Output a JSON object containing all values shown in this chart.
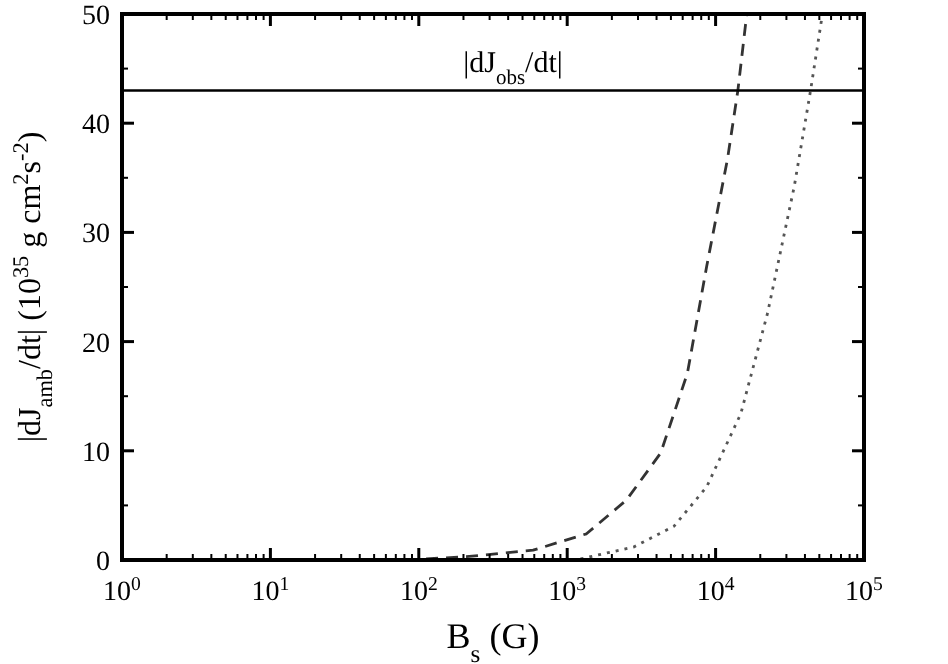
{
  "chart_data": {
    "type": "line",
    "xlabel": "B$_{s}$ (G)",
    "ylabel": "|dJ$_{amb}$/dt|  (10$^{35}$ g cm$^{2}$s$^{-2}$)",
    "log": "x",
    "xlim": [
      1,
      100000
    ],
    "ylim": [
      0,
      50
    ],
    "xticks": [
      {
        "value": 1,
        "label": "10$^{0}$"
      },
      {
        "value": 10,
        "label": "10$^{1}$"
      },
      {
        "value": 100,
        "label": "10$^{2}$"
      },
      {
        "value": 1000,
        "label": "10$^{3}$"
      },
      {
        "value": 10000,
        "label": "10$^{4}$"
      },
      {
        "value": 100000,
        "label": "10$^{5}$"
      }
    ],
    "yticks": [
      0,
      10,
      20,
      30,
      40,
      50
    ],
    "grid": false,
    "marker": "none",
    "series": [
      {
        "color": "#333333",
        "line_style": "dashed",
        "x": [
          112,
          209,
          589,
          1349,
          2512,
          4266,
          6457,
          8710,
          12020,
          14130,
          16220
        ],
        "values": [
          0.1,
          0.3,
          0.9,
          2.4,
          5.5,
          9.8,
          17.1,
          26.9,
          36.7,
          43,
          50
        ]
      },
      {
        "color": "#555555",
        "line_style": "dotted",
        "x": [
          1230,
          2818,
          5248,
          8710,
          14790,
          22390,
          33880,
          43650,
          52480
        ],
        "values": [
          0.1,
          1.2,
          3.1,
          6.7,
          13.4,
          22.6,
          34.2,
          43,
          50
        ]
      }
    ],
    "ref_lines": [
      {
        "axis": "y",
        "value": 43,
        "label": "|dJ$_{obs}$/dt|",
        "color": "#000000",
        "line_style": "solid"
      }
    ]
  }
}
